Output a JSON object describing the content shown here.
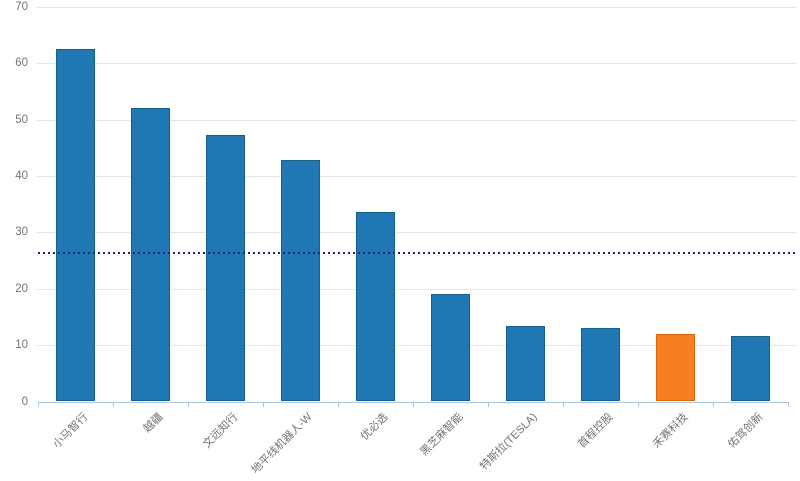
{
  "chart_data": {
    "type": "bar",
    "title": "",
    "xlabel": "",
    "ylabel": "",
    "categories": [
      "小马智行",
      "越疆",
      "文远知行",
      "地平线机器人-W",
      "优必选",
      "黑芝麻智能",
      "特斯拉(TESLA)",
      "首程控股",
      "禾赛科技",
      "佑驾创新"
    ],
    "values": [
      62.5,
      52,
      47.3,
      42.8,
      33.7,
      19,
      13.4,
      13.1,
      12,
      11.6
    ],
    "highlight_index": 8,
    "highlight_category": "禾赛科技",
    "reference_line": {
      "value": 26.35,
      "style": "dotted"
    },
    "ylim": [
      0,
      70
    ],
    "yticks": [
      0,
      10,
      20,
      30,
      40,
      50,
      60,
      70
    ],
    "grid": "horizontal",
    "legend": "none",
    "x_label_rotation_deg": 45
  },
  "colors": {
    "bar": "#1F77B4",
    "bar_border": "#15618D",
    "highlight_bar": "#F57F21",
    "highlight_bar_border": "#D8680B",
    "gridline": "#E6E6E6",
    "axis_line": "#ADC6DD",
    "tick": "#ADC6DD",
    "label_text": "#737373",
    "reference_line": "#22226B",
    "background": "#FFFFFF"
  }
}
